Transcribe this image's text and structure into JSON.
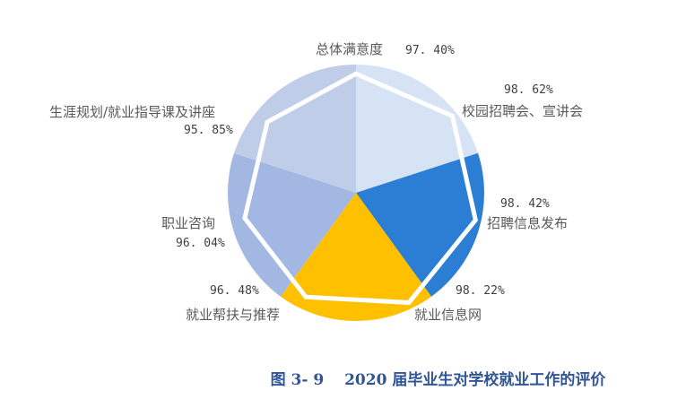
{
  "chart_data": {
    "type": "radar",
    "title": "图 3- 9　2020 届毕业生对学校就业工作的评价",
    "categories": [
      "总体满意度",
      "校园招聘会、宣讲会",
      "招聘信息发布",
      "就业信息网",
      "就业帮扶与推荐",
      "职业咨询",
      "生涯规划/就业指导课及讲座"
    ],
    "values": [
      97.4,
      98.62,
      98.42,
      98.22,
      96.48,
      96.04,
      95.85
    ],
    "value_labels": [
      "97.40%",
      "98.62%",
      "98.42%",
      "98.22%",
      "96.48%",
      "96.04%",
      "95.85%"
    ],
    "unit": "%",
    "radial_range": [
      64,
      100
    ],
    "grid": false,
    "legend": "none",
    "line_color": "#FFFFFF",
    "background_pie": {
      "slices": 5,
      "colors": [
        "#D5E3F5",
        "#2B7ED3",
        "#FFC000",
        "#A2B8E3",
        "#C0CDE9"
      ]
    }
  },
  "labels": {
    "c0": "总体满意度",
    "v0": "97. 40%",
    "c1": "校园招聘会、宣讲会",
    "v1": "98. 62%",
    "c2": "招聘信息发布",
    "v2": "98. 42%",
    "c3": "就业信息网",
    "v3": "98. 22%",
    "c4": "就业帮扶与推荐",
    "v4": "96. 48%",
    "c5": "职业咨询",
    "v5": "96. 04%",
    "c6": "生涯规划/就业指导课及讲座",
    "v6": "95. 85%"
  },
  "caption": "图 3- 9　 2020 届毕业生对学校就业工作的评价"
}
